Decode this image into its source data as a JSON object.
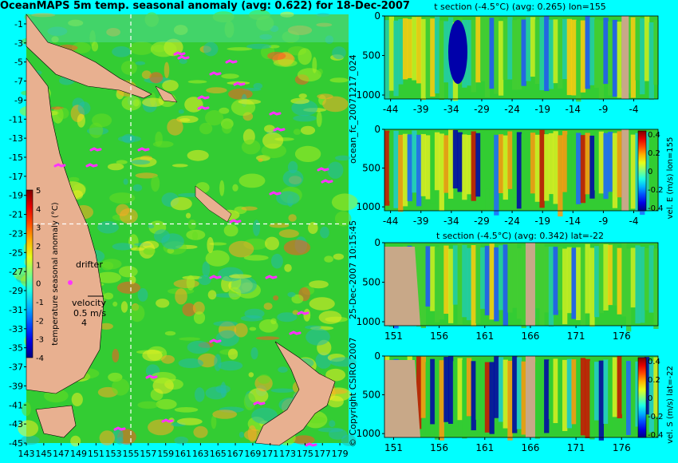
{
  "colors": {
    "background": "#00ffff",
    "land": "#e8b090",
    "land_section": "#c8a888",
    "ocean_base": "#33cc33",
    "drifter": "#ff33ff",
    "dashed_line": "#ffffff"
  },
  "map_panel": {
    "title": "OceanMAPS 5m temp. seasonal anomaly (avg: 0.622) for 18-Dec-2007",
    "y_ticks": [
      "-1",
      "-3",
      "-5",
      "-7",
      "-9",
      "-11",
      "-13",
      "-15",
      "-17",
      "-19",
      "-21",
      "-23",
      "-25",
      "-27",
      "-29",
      "-31",
      "-33",
      "-35",
      "-37",
      "-39",
      "-41",
      "-43",
      "-45"
    ],
    "x_ticks": [
      "143",
      "145",
      "147",
      "149",
      "151",
      "153",
      "155",
      "157",
      "159",
      "161",
      "163",
      "165",
      "167",
      "169",
      "171",
      "173",
      "175",
      "177",
      "179"
    ],
    "drifter_label": "drifter",
    "velocity_label": "velocity",
    "velocity_value": "0.5 m/s",
    "velocity_count": "4",
    "colorbar_label": "temperature seasonal anomaly (°C)",
    "colorbar_ticks": [
      "5",
      "4",
      "3",
      "2",
      "1",
      "0",
      "-1",
      "-2",
      "-3",
      "-4"
    ],
    "section_lon": 155,
    "section_lat": -22
  },
  "sections": [
    {
      "title": "t section (-4.5°C) (avg: 0.265) lon=155",
      "x_ticks": [
        "-44",
        "-39",
        "-34",
        "-29",
        "-24",
        "-19",
        "-14",
        "-9",
        "-4"
      ],
      "y_ticks": [
        "0",
        "500",
        "1000"
      ]
    },
    {
      "title": "",
      "x_ticks": [
        "-44",
        "-39",
        "-34",
        "-29",
        "-24",
        "-19",
        "-14",
        "-9",
        "-4"
      ],
      "y_ticks": [
        "0",
        "500",
        "1000"
      ],
      "colorbar_ticks": [
        "0.4",
        "0.2",
        "0",
        "-0.2",
        "-0.4"
      ],
      "colorbar_label": "vel. E (m/s) lon=155"
    },
    {
      "title": "t section (-4.5°C) (avg: 0.342) lat=-22",
      "x_ticks": [
        "151",
        "156",
        "161",
        "166",
        "171",
        "176"
      ],
      "y_ticks": [
        "0",
        "500",
        "1000"
      ]
    },
    {
      "title": "",
      "x_ticks": [
        "151",
        "156",
        "161",
        "166",
        "171",
        "176"
      ],
      "y_ticks": [
        "0",
        "500",
        "1000"
      ],
      "colorbar_ticks": [
        "0.4",
        "0.2",
        "0",
        "-0.2",
        "-0.4"
      ],
      "colorbar_label": "vel. S (m/s) lat=-22"
    }
  ],
  "side_labels": {
    "forecast": "ocean_fc_20071217_024",
    "date": "25-Dec-2007 10:15:45",
    "copyright": "© Copyright CSIRO 2007"
  },
  "chart_data": [
    {
      "type": "heatmap",
      "title": "OceanMAPS 5m temp. seasonal anomaly (avg: 0.622) for 18-Dec-2007",
      "xlim": [
        143,
        180
      ],
      "ylim": [
        -45,
        0
      ],
      "colorbar_range": [
        -4,
        5
      ],
      "colorbar_label": "temperature seasonal anomaly (°C)"
    },
    {
      "type": "heatmap",
      "title": "t section (-4.5°C) (avg: 0.265) lon=155",
      "xlim": [
        -45,
        0
      ],
      "ylim": [
        1050,
        0
      ],
      "x_ticks": [
        -44,
        -39,
        -34,
        -29,
        -24,
        -19,
        -14,
        -9,
        -4
      ],
      "y_ticks": [
        0,
        500,
        1000
      ]
    },
    {
      "type": "heatmap",
      "title": "",
      "xlim": [
        -45,
        0
      ],
      "ylim": [
        1050,
        0
      ],
      "colorbar_range": [
        -0.4,
        0.4
      ],
      "colorbar_label": "vel. E (m/s) lon=155"
    },
    {
      "type": "heatmap",
      "title": "t section (-4.5°C) (avg: 0.342) lat=-22",
      "xlim": [
        150,
        180
      ],
      "ylim": [
        1050,
        0
      ],
      "x_ticks": [
        151,
        156,
        161,
        166,
        171,
        176
      ],
      "y_ticks": [
        0,
        500,
        1000
      ]
    },
    {
      "type": "heatmap",
      "title": "",
      "xlim": [
        150,
        180
      ],
      "ylim": [
        1050,
        0
      ],
      "colorbar_range": [
        -0.4,
        0.4
      ],
      "colorbar_label": "vel. S (m/s) lat=-22"
    }
  ]
}
